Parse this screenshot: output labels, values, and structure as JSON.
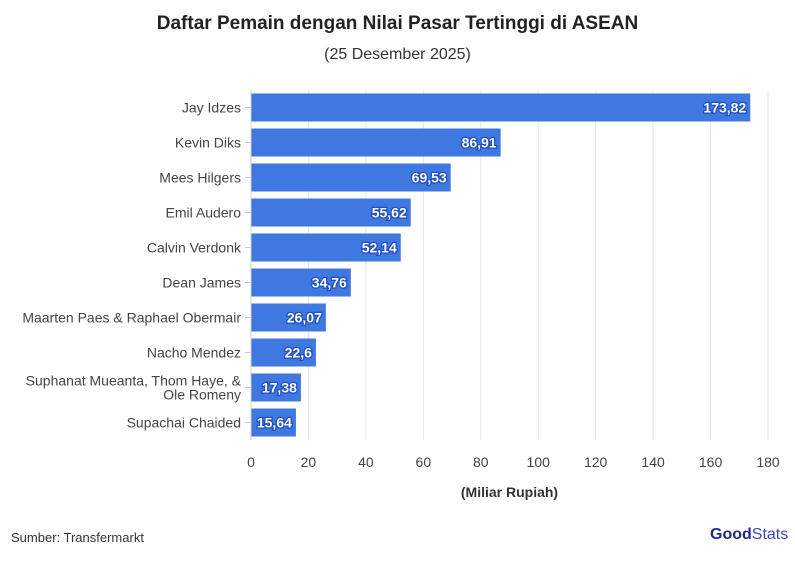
{
  "title": "Daftar Pemain dengan Nilai Pasar Tertinggi di ASEAN",
  "subtitle": "(25 Desember 2025)",
  "source": "Sumber: Transfermarkt",
  "logo": {
    "part1": "Good",
    "part2": "Stats"
  },
  "colors": {
    "bar": "#3f78e0",
    "label_outline": "#1f4fc0"
  },
  "chart_data": {
    "type": "bar",
    "orientation": "horizontal",
    "categories": [
      "Jay Idzes",
      "Kevin Diks",
      "Mees Hilgers",
      "Emil Audero",
      "Calvin Verdonk",
      "Dean James",
      "Maarten Paes & Raphael Obermair",
      "Nacho Mendez",
      "Suphanat Mueanta, Thom Haye, & Ole Romeny",
      "Supachai Chaided"
    ],
    "values": [
      173.82,
      86.91,
      69.53,
      55.62,
      52.14,
      34.76,
      26.07,
      22.6,
      17.38,
      15.64
    ],
    "data_labels": [
      "173,82",
      "86,91",
      "69,53",
      "55,62",
      "52,14",
      "34,76",
      "26,07",
      "22,6",
      "17,38",
      "15,64"
    ],
    "xlabel": "(Miliar Rupiah)",
    "xlim": [
      0,
      180
    ],
    "xticks": [
      0,
      20,
      40,
      60,
      80,
      100,
      120,
      140,
      160,
      180
    ],
    "grid": true
  }
}
